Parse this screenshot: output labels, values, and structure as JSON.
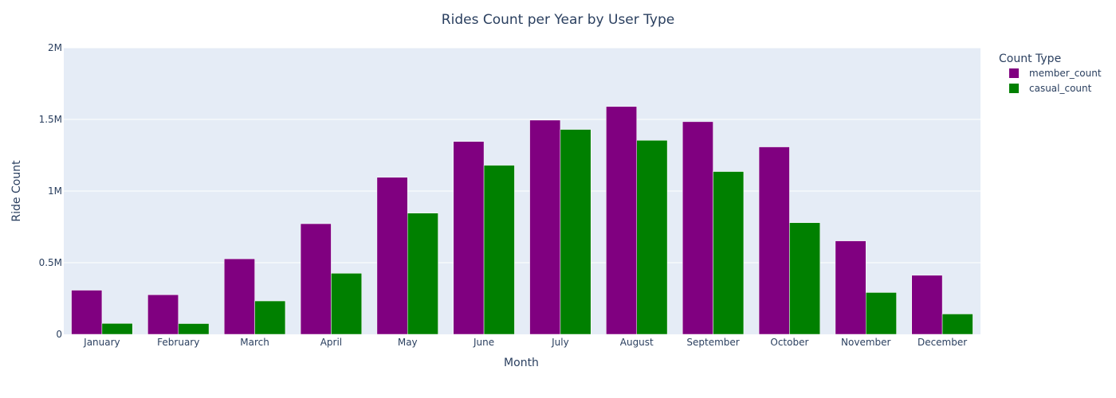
{
  "chart_data": {
    "type": "bar",
    "title": "Rides Count per Year by User Type",
    "xlabel": "Month",
    "ylabel": "Ride Count",
    "categories": [
      "January",
      "February",
      "March",
      "April",
      "May",
      "June",
      "July",
      "August",
      "September",
      "October",
      "November",
      "December"
    ],
    "series": [
      {
        "name": "member_count",
        "color": "#800080",
        "values": [
          308000,
          276000,
          527000,
          772000,
          1096000,
          1346000,
          1495000,
          1590000,
          1484000,
          1308000,
          652000,
          412000
        ]
      },
      {
        "name": "casual_count",
        "color": "#008000",
        "values": [
          76000,
          75000,
          233000,
          426000,
          846000,
          1180000,
          1430000,
          1354000,
          1136000,
          779000,
          292000,
          142000
        ]
      }
    ],
    "ylim": [
      0,
      2000000
    ],
    "yticks": [
      0,
      500000,
      1000000,
      1500000,
      2000000
    ],
    "ytick_labels": [
      "0",
      "0.5M",
      "1M",
      "1.5M",
      "2M"
    ],
    "grid": true,
    "legend": {
      "title": "Count Type",
      "position": "top-right"
    },
    "plot_background": "#e5ecf6"
  }
}
